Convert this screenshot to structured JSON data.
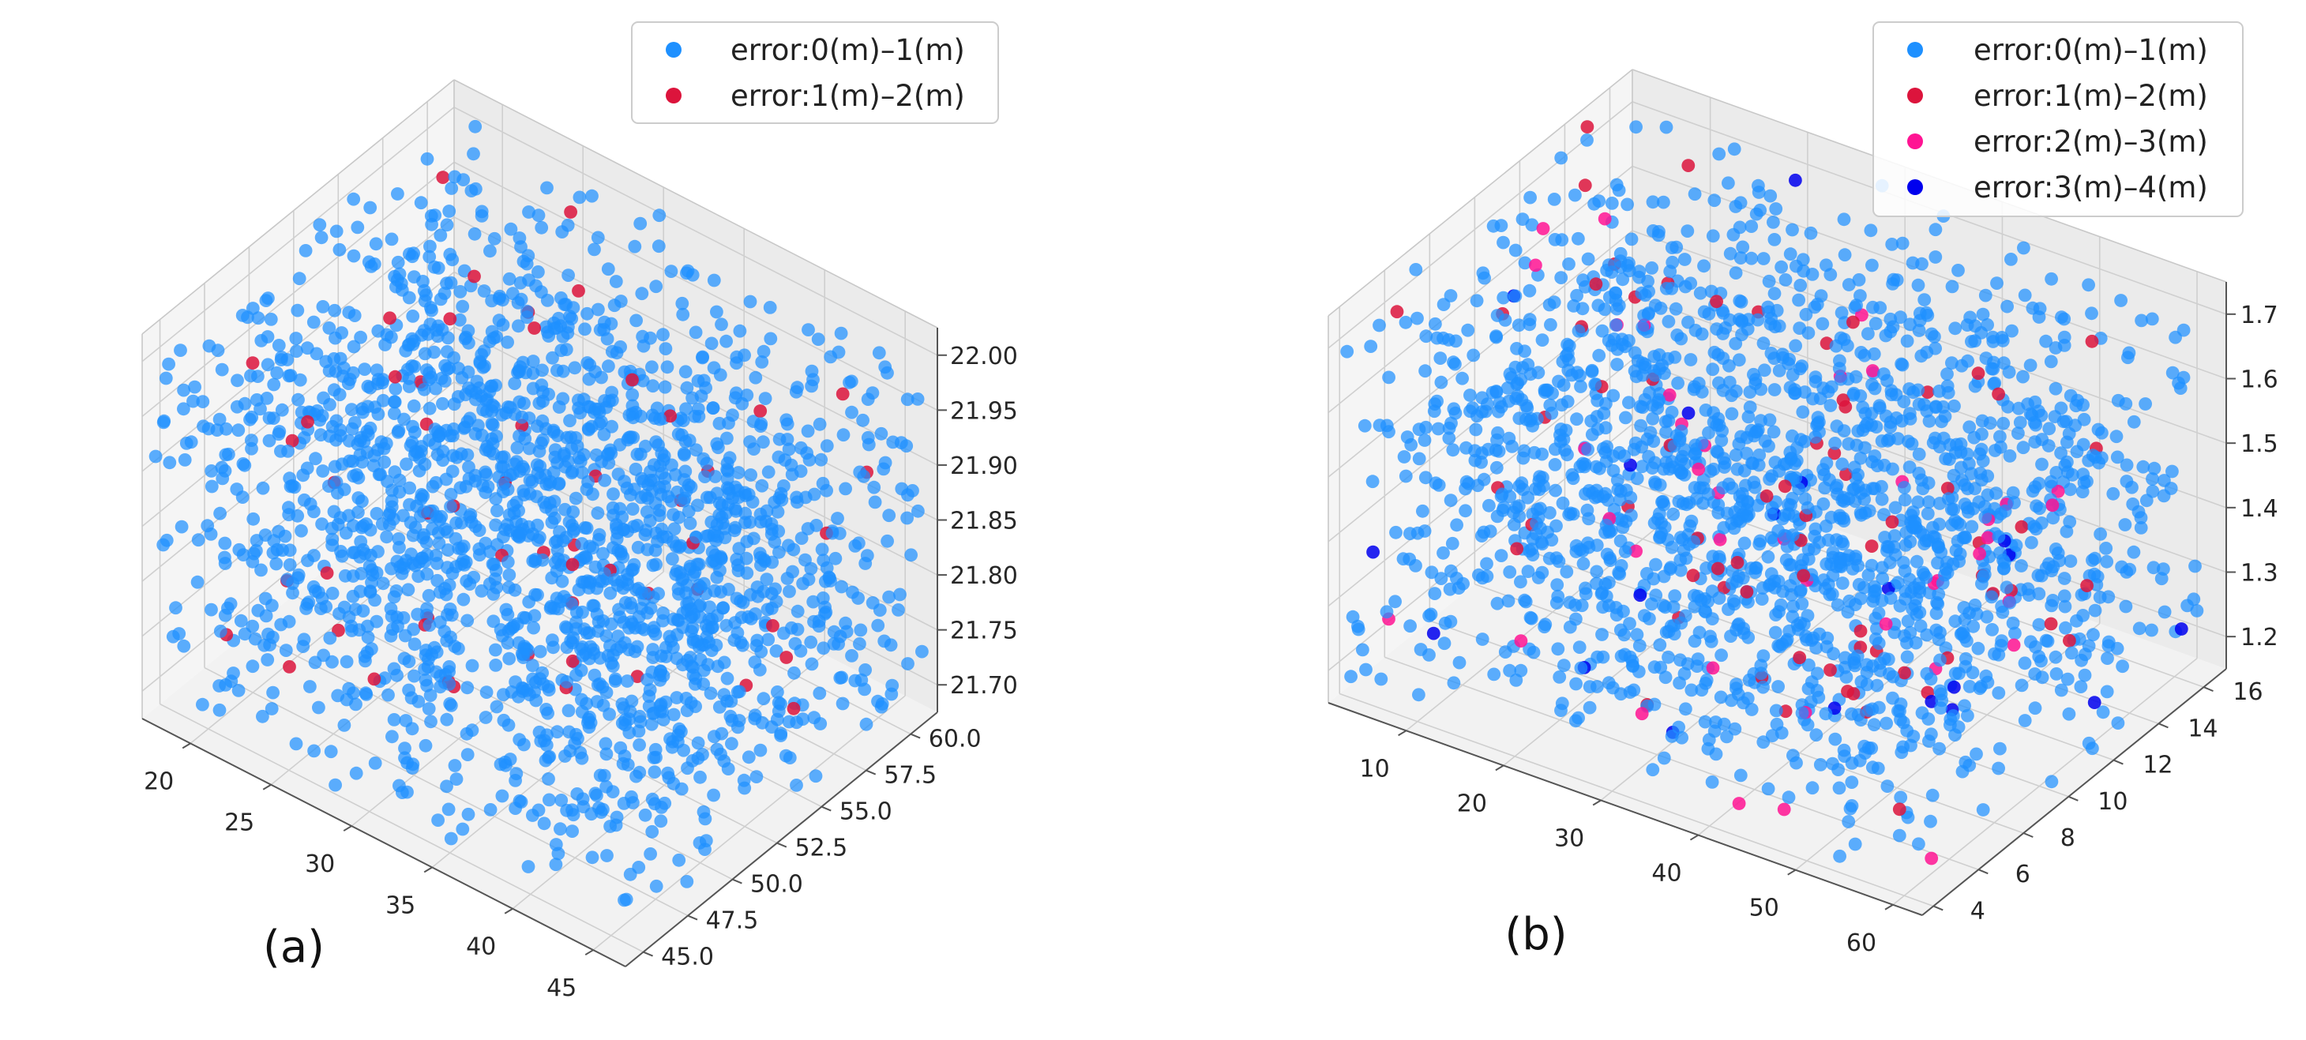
{
  "colors": {
    "error_0_1": "#1e90ff",
    "error_1_2": "#dc143c",
    "error_2_3": "#ff1493",
    "error_3_4": "#0000ee",
    "pane": "#f2f2f2",
    "grid": "#cfcfcf",
    "axis": "#555555"
  },
  "chart_data": [
    {
      "type": "scatter",
      "projection": "3d",
      "panel_label": "(a)",
      "title": "",
      "xlabel": "",
      "ylabel": "",
      "zlabel": "",
      "xlim": [
        17,
        47
      ],
      "ylim": [
        44,
        61.5
      ],
      "zlim": [
        21.675,
        22.025
      ],
      "x_ticks": [
        "20",
        "25",
        "30",
        "35",
        "40",
        "45"
      ],
      "y_ticks": [
        "45.0",
        "47.5",
        "50.0",
        "52.5",
        "55.0",
        "57.5",
        "60.0"
      ],
      "z_ticks": [
        "21.70",
        "21.75",
        "21.80",
        "21.85",
        "21.90",
        "21.95",
        "22.00"
      ],
      "grid": true,
      "legend_position": "top-right",
      "legend": [
        "error:0(m)–1(m)",
        "error:1(m)–2(m)"
      ],
      "series": [
        {
          "name": "error:0(m)–1(m)",
          "color": "#1e90ff",
          "approx_count": 2000
        },
        {
          "name": "error:1(m)–2(m)",
          "color": "#dc143c",
          "approx_count": 55
        }
      ],
      "point_distribution": "uniform random points filling the whole cube; values not individually readable"
    },
    {
      "type": "scatter",
      "projection": "3d",
      "panel_label": "(b)",
      "title": "",
      "xlabel": "",
      "ylabel": "",
      "zlabel": "",
      "xlim": [
        2,
        63
      ],
      "ylim": [
        3.5,
        17
      ],
      "zlim": [
        1.15,
        1.75
      ],
      "x_ticks": [
        "10",
        "20",
        "30",
        "40",
        "50",
        "60"
      ],
      "y_ticks": [
        "4",
        "6",
        "8",
        "10",
        "12",
        "14",
        "16"
      ],
      "z_ticks": [
        "1.2",
        "1.3",
        "1.4",
        "1.5",
        "1.6",
        "1.7"
      ],
      "grid": true,
      "legend_position": "top-right",
      "legend": [
        "error:0(m)–1(m)",
        "error:1(m)–2(m)",
        "error:2(m)–3(m)",
        "error:3(m)–4(m)"
      ],
      "series": [
        {
          "name": "error:0(m)–1(m)",
          "color": "#1e90ff",
          "approx_count": 1900
        },
        {
          "name": "error:1(m)–2(m)",
          "color": "#dc143c",
          "approx_count": 70
        },
        {
          "name": "error:2(m)–3(m)",
          "color": "#ff1493",
          "approx_count": 40
        },
        {
          "name": "error:3(m)–4(m)",
          "color": "#0000ee",
          "approx_count": 20
        }
      ],
      "point_distribution": "uniform random points filling the whole cube; values not individually readable"
    }
  ]
}
